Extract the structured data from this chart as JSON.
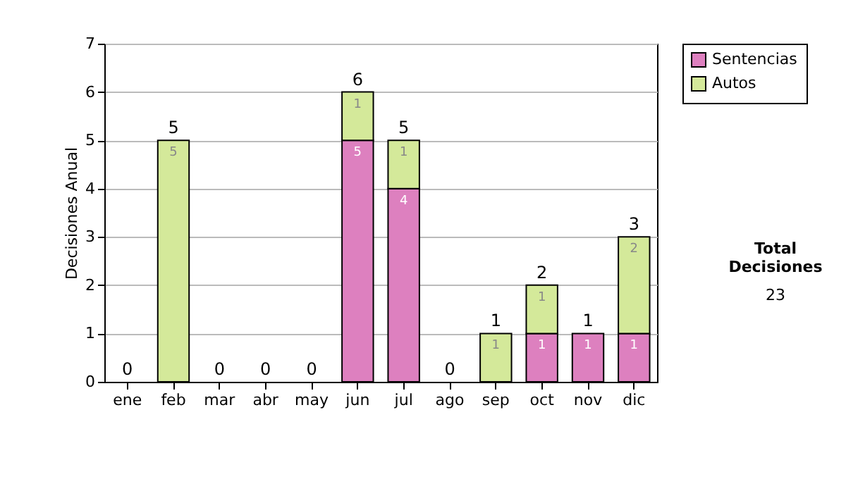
{
  "chart_data": {
    "type": "bar",
    "stacked": true,
    "ylabel": "Decisiones Anual",
    "categories": [
      "ene",
      "feb",
      "mar",
      "abr",
      "may",
      "jun",
      "jul",
      "ago",
      "sep",
      "oct",
      "nov",
      "dic"
    ],
    "series": [
      {
        "name": "Sentencias",
        "color": "#dd80bf",
        "values": [
          0,
          0,
          0,
          0,
          0,
          5,
          4,
          0,
          0,
          1,
          1,
          1
        ],
        "value_labels": [
          null,
          null,
          null,
          null,
          null,
          "5",
          "4",
          null,
          null,
          "1",
          "1",
          "1"
        ]
      },
      {
        "name": "Autos",
        "color": "#d4e99a",
        "values": [
          0,
          5,
          0,
          0,
          0,
          1,
          1,
          0,
          1,
          1,
          0,
          2
        ],
        "value_labels": [
          null,
          "5",
          null,
          null,
          null,
          "1",
          "1",
          null,
          "1",
          "1",
          null,
          "2"
        ]
      }
    ],
    "totals": [
      "0",
      "5",
      "0",
      "0",
      "0",
      "6",
      "5",
      "0",
      "1",
      "2",
      "1",
      "3"
    ],
    "ylim": [
      0,
      7
    ],
    "yticks": [
      0,
      1,
      2,
      3,
      4,
      5,
      6,
      7
    ],
    "grid": "y",
    "legend": "right",
    "annotations": [
      "Total Decisiones",
      "23"
    ]
  }
}
